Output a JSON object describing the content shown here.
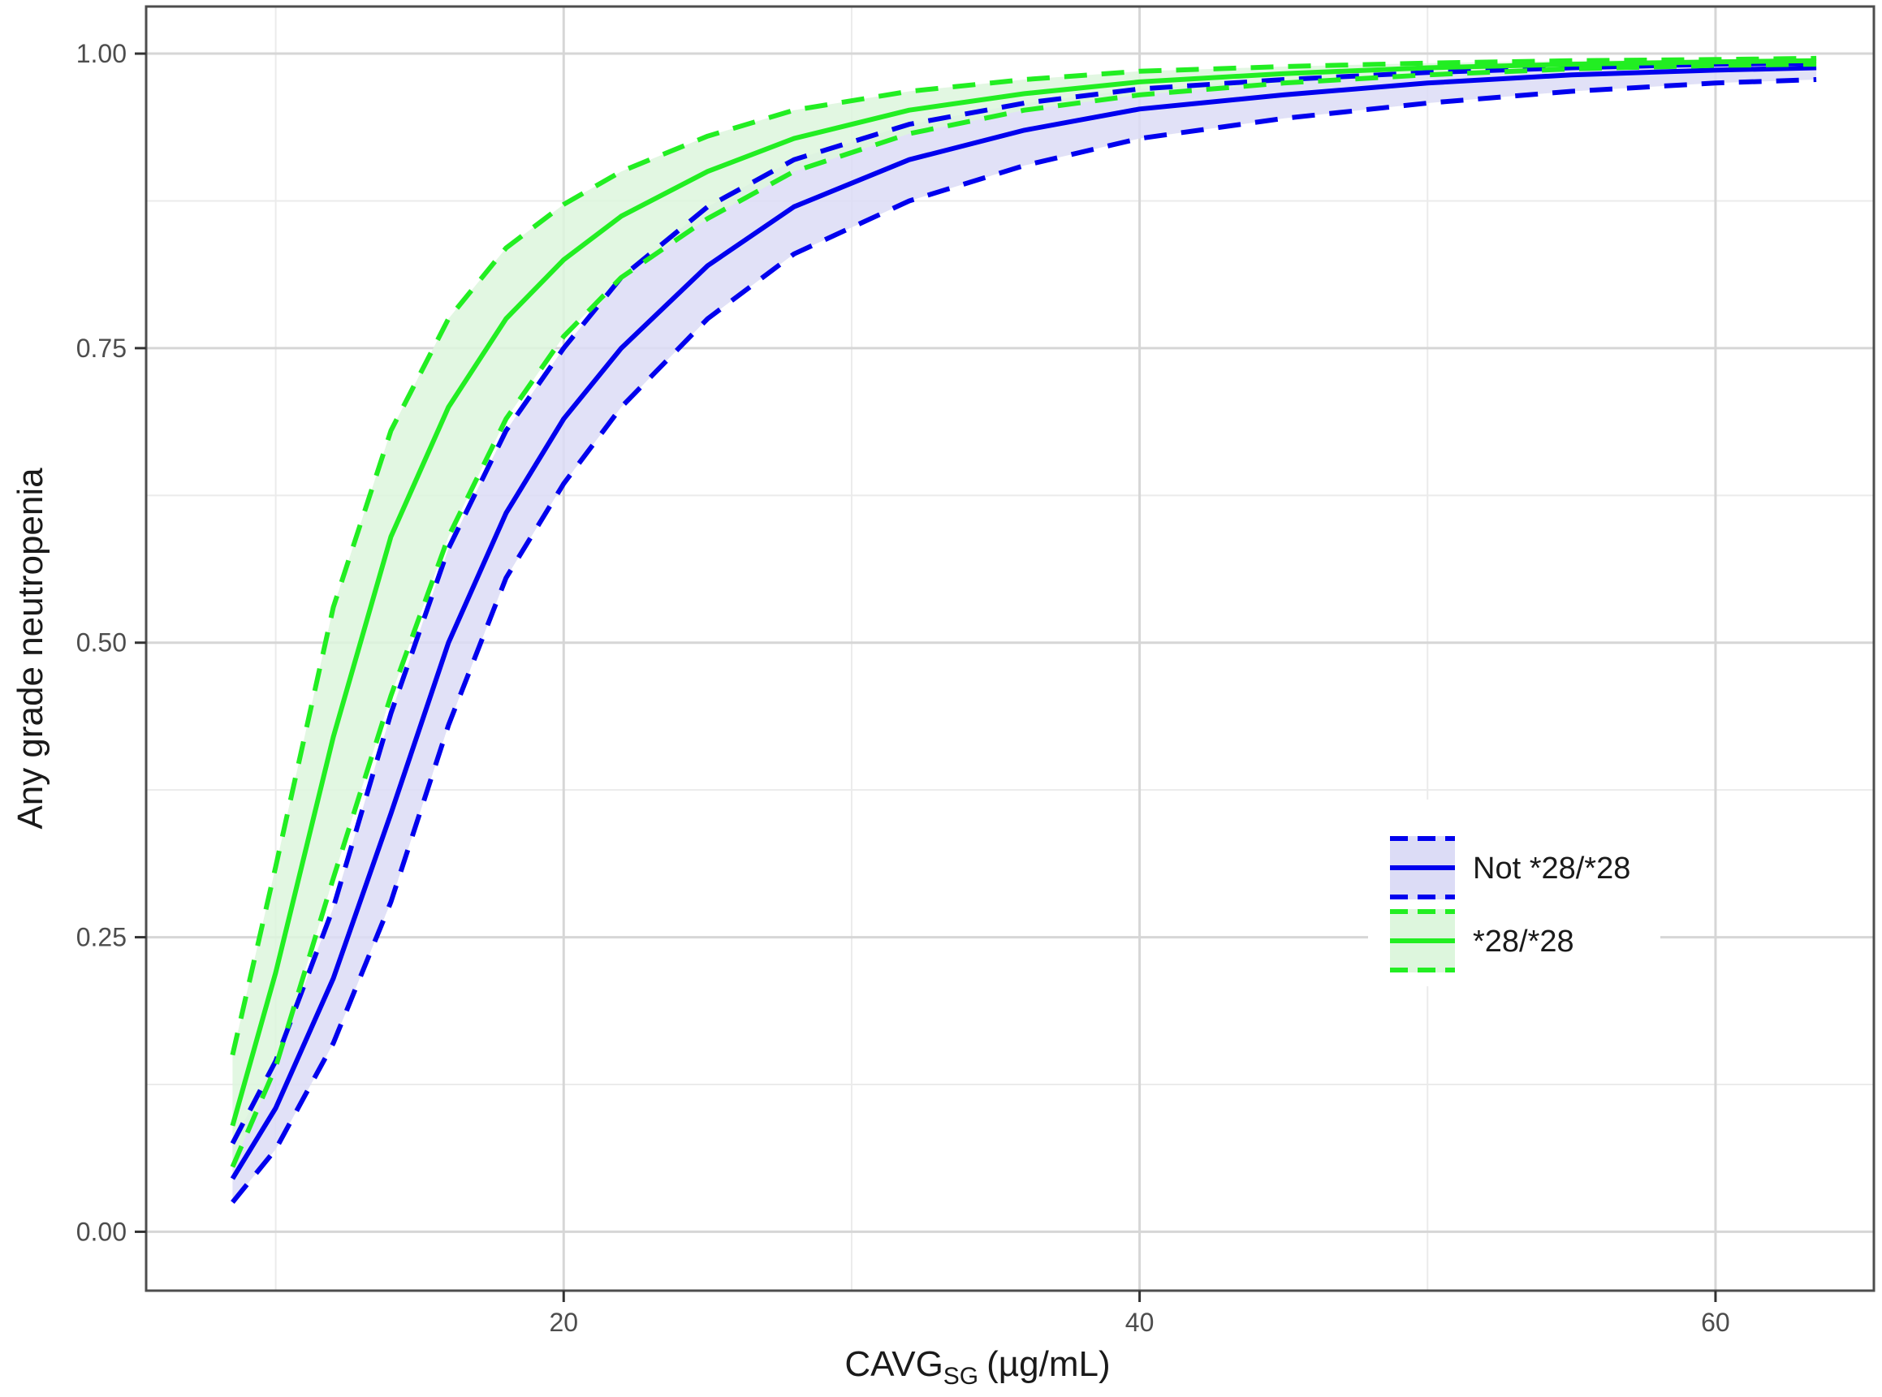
{
  "chart_data": {
    "type": "line",
    "title": "",
    "xlabel_main": "CAVG",
    "xlabel_sub": "SG",
    "xlabel_unit": "(µg/mL)",
    "ylabel": "Any grade neutropenia",
    "xlim": [
      5.5,
      65.5
    ],
    "ylim": [
      -0.05,
      1.04
    ],
    "x_ticks": [
      20,
      40,
      60
    ],
    "x_tick_labels": [
      "20",
      "40",
      "60"
    ],
    "x_minor_ticks": [
      10,
      30,
      50
    ],
    "y_ticks": [
      0,
      0.25,
      0.5,
      0.75,
      1.0
    ],
    "y_tick_labels": [
      "0.00",
      "0.25",
      "0.50",
      "0.75",
      "1.00"
    ],
    "y_minor_ticks": [
      0.125,
      0.375,
      0.625,
      0.875
    ],
    "grid": true,
    "legend_position": "right",
    "x": [
      8.5,
      10,
      12,
      14,
      16,
      18,
      20,
      22,
      25,
      28,
      32,
      36,
      40,
      45,
      50,
      55,
      60,
      63.5
    ],
    "series": [
      {
        "name": "Not *28/*28",
        "color": "#0000ee",
        "fill": "#dcdcf6",
        "estimate": [
          0.045,
          0.105,
          0.215,
          0.355,
          0.5,
          0.61,
          0.69,
          0.75,
          0.82,
          0.87,
          0.91,
          0.935,
          0.953,
          0.965,
          0.975,
          0.982,
          0.986,
          0.988
        ],
        "lower": [
          0.025,
          0.07,
          0.16,
          0.28,
          0.43,
          0.555,
          0.635,
          0.7,
          0.775,
          0.83,
          0.875,
          0.905,
          0.928,
          0.945,
          0.958,
          0.968,
          0.975,
          0.978
        ],
        "upper": [
          0.075,
          0.145,
          0.275,
          0.44,
          0.58,
          0.68,
          0.75,
          0.81,
          0.87,
          0.91,
          0.94,
          0.958,
          0.97,
          0.978,
          0.984,
          0.988,
          0.991,
          0.992
        ]
      },
      {
        "name": "*28/*28",
        "color": "#22ee22",
        "fill": "#ddf6dd",
        "estimate": [
          0.09,
          0.22,
          0.42,
          0.59,
          0.7,
          0.775,
          0.825,
          0.862,
          0.9,
          0.928,
          0.952,
          0.966,
          0.976,
          0.983,
          0.988,
          0.991,
          0.993,
          0.994
        ],
        "lower": [
          0.055,
          0.14,
          0.3,
          0.455,
          0.59,
          0.69,
          0.76,
          0.81,
          0.86,
          0.9,
          0.932,
          0.952,
          0.965,
          0.975,
          0.982,
          0.987,
          0.99,
          0.991
        ],
        "upper": [
          0.15,
          0.31,
          0.53,
          0.68,
          0.775,
          0.835,
          0.872,
          0.9,
          0.93,
          0.952,
          0.968,
          0.978,
          0.985,
          0.989,
          0.992,
          0.994,
          0.995,
          0.996
        ]
      }
    ]
  }
}
